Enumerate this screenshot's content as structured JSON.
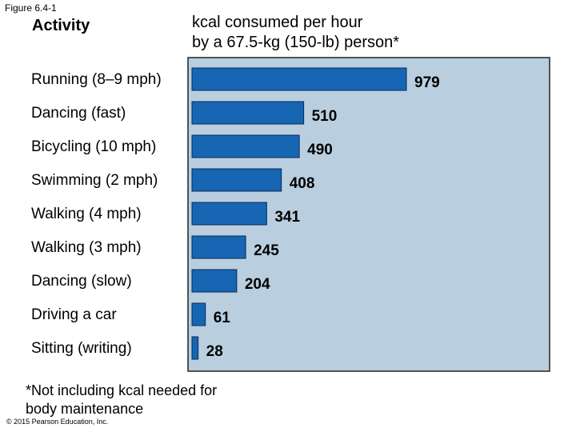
{
  "figure_label": "Figure 6.4-1",
  "colors": {
    "panel": "#b9cfdf",
    "panel_edge": "#222222",
    "bar": "#1666b4",
    "bar_edge": "#0a2a55",
    "text": "#000000"
  },
  "footnote": "*Not including kcal needed for\nbody maintenance",
  "copyright": "© 2015 Pearson Education, Inc.",
  "chart_data": {
    "type": "bar",
    "orientation": "horizontal",
    "category_header": "Activity",
    "value_header": "kcal consumed per hour\nby a 67.5-kg (150-lb) person*",
    "categories": [
      "Running (8–9 mph)",
      "Dancing (fast)",
      "Bicycling (10 mph)",
      "Swimming (2 mph)",
      "Walking (4 mph)",
      "Walking (3 mph)",
      "Dancing (slow)",
      "Driving a car",
      "Sitting (writing)"
    ],
    "values": [
      979,
      510,
      490,
      408,
      341,
      245,
      204,
      61,
      28
    ],
    "xlim": [
      0,
      1000
    ],
    "grid": false,
    "legend": "none"
  }
}
